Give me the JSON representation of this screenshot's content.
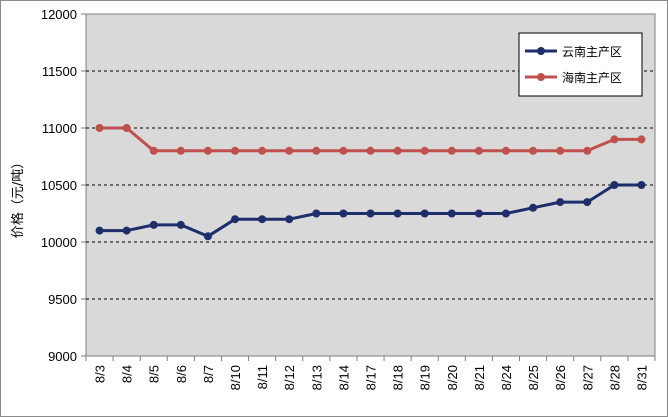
{
  "chart_data": {
    "type": "line",
    "title": "",
    "xlabel": "",
    "ylabel": "价格（元/吨）",
    "ylim": [
      9000,
      12000
    ],
    "yticks": [
      9000,
      9500,
      10000,
      10500,
      11000,
      11500,
      12000
    ],
    "grid": true,
    "legend_position": "top-right",
    "categories": [
      "8/3",
      "8/4",
      "8/5",
      "8/6",
      "8/7",
      "8/10",
      "8/11",
      "8/12",
      "8/13",
      "8/14",
      "8/17",
      "8/18",
      "8/19",
      "8/20",
      "8/21",
      "8/24",
      "8/25",
      "8/26",
      "8/27",
      "8/28",
      "8/31"
    ],
    "series": [
      {
        "name": "云南主产区",
        "color": "#1f2d6b",
        "values": [
          10100,
          10100,
          10150,
          10150,
          10050,
          10200,
          10200,
          10200,
          10250,
          10250,
          10250,
          10250,
          10250,
          10250,
          10250,
          10250,
          10300,
          10350,
          10350,
          10500,
          10500
        ]
      },
      {
        "name": "海南主产区",
        "color": "#c0504d",
        "values": [
          11000,
          11000,
          10800,
          10800,
          10800,
          10800,
          10800,
          10800,
          10800,
          10800,
          10800,
          10800,
          10800,
          10800,
          10800,
          10800,
          10800,
          10800,
          10800,
          10900,
          10900
        ]
      }
    ],
    "plot_background": "#d9d9d9"
  }
}
